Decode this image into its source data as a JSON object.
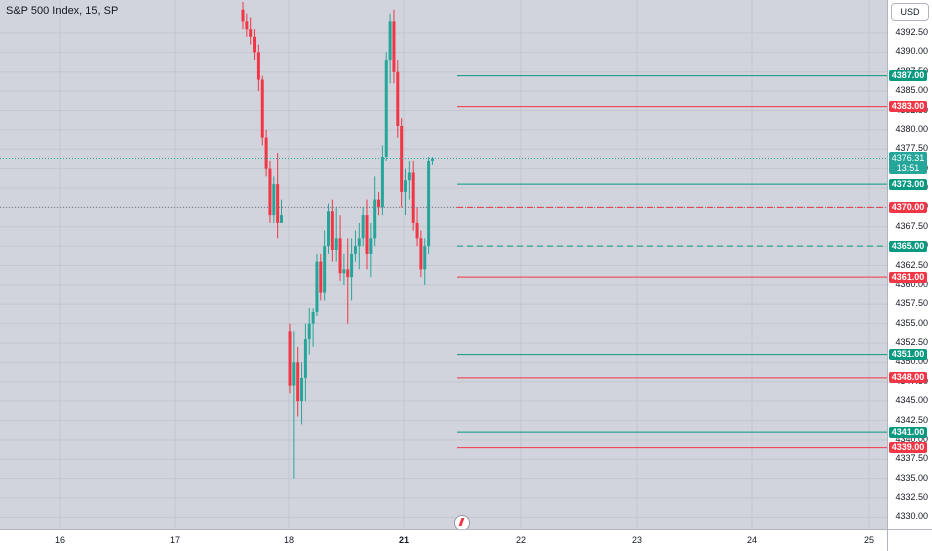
{
  "legend": {
    "title": "S&P 500 Index, 15, SP"
  },
  "currency": "USD",
  "colors": {
    "up": "#26a69a",
    "down": "#f23645",
    "green_line": "#089981",
    "red_line": "#f23645"
  },
  "price_axis": {
    "labels": [
      "4392.50",
      "4390.00",
      "4387.50",
      "4385.00",
      "4382.50",
      "4380.00",
      "4377.50",
      "4375.00",
      "4372.50",
      "4370.00",
      "4367.50",
      "4365.00",
      "4362.50",
      "4360.00",
      "4357.50",
      "4355.00",
      "4352.50",
      "4350.00",
      "4347.50",
      "4345.00",
      "4342.50",
      "4340.00",
      "4337.50",
      "4335.00",
      "4332.50",
      "4330.00"
    ]
  },
  "time_axis": {
    "labels": [
      "16",
      "17",
      "18",
      "21",
      "22",
      "23",
      "24",
      "25"
    ]
  },
  "last_price": {
    "value": "4376.31",
    "countdown": "13:51"
  },
  "levels": [
    {
      "label": "4387.00",
      "value": 4387.0,
      "color": "green",
      "style": "solid"
    },
    {
      "label": "4383.00",
      "value": 4383.0,
      "color": "red",
      "style": "solid"
    },
    {
      "label": "4373.00",
      "value": 4373.0,
      "color": "green",
      "style": "solid"
    },
    {
      "label": "4370.00",
      "value": 4370.0,
      "color": "red",
      "style": "dashed"
    },
    {
      "label": "4365.00",
      "value": 4365.0,
      "color": "green",
      "style": "dashed"
    },
    {
      "label": "4361.00",
      "value": 4361.0,
      "color": "red",
      "style": "solid"
    },
    {
      "label": "4351.00",
      "value": 4351.0,
      "color": "green",
      "style": "solid"
    },
    {
      "label": "4348.00",
      "value": 4348.0,
      "color": "red",
      "style": "solid"
    },
    {
      "label": "4341.00",
      "value": 4341.0,
      "color": "green",
      "style": "solid"
    },
    {
      "label": "4339.00",
      "value": 4339.0,
      "color": "red",
      "style": "solid"
    }
  ],
  "crosshair_price": 4370.0,
  "chart_data": {
    "type": "candlestick",
    "symbol": "S&P 500 Index",
    "interval": "15",
    "ylim": [
      4328.5,
      4396.5
    ],
    "candles": [
      [
        4395.5,
        4396.5,
        4393.0,
        4394.0
      ],
      [
        4394.0,
        4395.0,
        4392.0,
        4393.0
      ],
      [
        4393.0,
        4394.5,
        4391.0,
        4392.0
      ],
      [
        4392.0,
        4393.0,
        4389.0,
        4390.0
      ],
      [
        4390.0,
        4391.0,
        4385.0,
        4386.5
      ],
      [
        4386.5,
        4387.0,
        4378.0,
        4379.0
      ],
      [
        4379.0,
        4380.0,
        4374.0,
        4375.0
      ],
      [
        4375.0,
        4376.0,
        4368.0,
        4369.0
      ],
      [
        4369.0,
        4374.0,
        4368.0,
        4373.0
      ],
      [
        4373.0,
        4377.0,
        4366.0,
        4368.0
      ],
      [
        4368.0,
        4371.0,
        4368.0,
        4369.0
      ],
      [
        4354.0,
        4355.0,
        4346.0,
        4347.0
      ],
      [
        4347.0,
        4354.0,
        4335.0,
        4350.0
      ],
      [
        4350.0,
        4352.0,
        4343.0,
        4345.0
      ],
      [
        4345.0,
        4350.0,
        4342.0,
        4348.0
      ],
      [
        4348.0,
        4355.0,
        4345.0,
        4353.0
      ],
      [
        4353.0,
        4357.0,
        4351.0,
        4355.0
      ],
      [
        4355.0,
        4357.0,
        4352.0,
        4356.5
      ],
      [
        4356.5,
        4364.0,
        4356.0,
        4363.0
      ],
      [
        4363.0,
        4364.0,
        4358.0,
        4359.0
      ],
      [
        4359.0,
        4367.0,
        4358.0,
        4365.0
      ],
      [
        4365.0,
        4370.5,
        4364.0,
        4369.5
      ],
      [
        4369.5,
        4371.0,
        4363.0,
        4364.5
      ],
      [
        4364.5,
        4370.0,
        4363.0,
        4366.0
      ],
      [
        4366.0,
        4369.0,
        4360.5,
        4361.5
      ],
      [
        4361.5,
        4364.0,
        4360.0,
        4362.0
      ],
      [
        4362.0,
        4366.0,
        4355.0,
        4361.0
      ],
      [
        4361.0,
        4366.0,
        4358.0,
        4364.0
      ],
      [
        4364.0,
        4367.0,
        4363.0,
        4365.0
      ],
      [
        4365.0,
        4368.0,
        4362.0,
        4366.0
      ],
      [
        4366.0,
        4370.0,
        4365.0,
        4369.0
      ],
      [
        4369.0,
        4371.0,
        4362.0,
        4364.0
      ],
      [
        4364.0,
        4368.0,
        4361.0,
        4366.0
      ],
      [
        4366.0,
        4374.0,
        4365.0,
        4371.0
      ],
      [
        4371.0,
        4372.0,
        4369.0,
        4370.0
      ],
      [
        4370.0,
        4378.0,
        4369.0,
        4376.5
      ],
      [
        4376.5,
        4390.0,
        4376.0,
        4389.0
      ],
      [
        4389.0,
        4395.0,
        4386.0,
        4394.0
      ],
      [
        4394.0,
        4395.5,
        4386.0,
        4387.5
      ],
      [
        4387.5,
        4389.0,
        4379.0,
        4380.5
      ],
      [
        4380.5,
        4381.5,
        4370.0,
        4372.0
      ],
      [
        4372.0,
        4375.0,
        4369.0,
        4373.5
      ],
      [
        4373.5,
        4376.0,
        4371.0,
        4374.5
      ],
      [
        4374.5,
        4376.0,
        4367.0,
        4368.0
      ],
      [
        4368.0,
        4370.0,
        4365.0,
        4366.0
      ],
      [
        4366.0,
        4367.0,
        4361.0,
        4362.0
      ],
      [
        4362.0,
        4366.0,
        4360.0,
        4365.0
      ],
      [
        4365.0,
        4376.5,
        4364.0,
        4376.0
      ],
      [
        4376.0,
        4376.5,
        4375.5,
        4376.31
      ]
    ]
  }
}
